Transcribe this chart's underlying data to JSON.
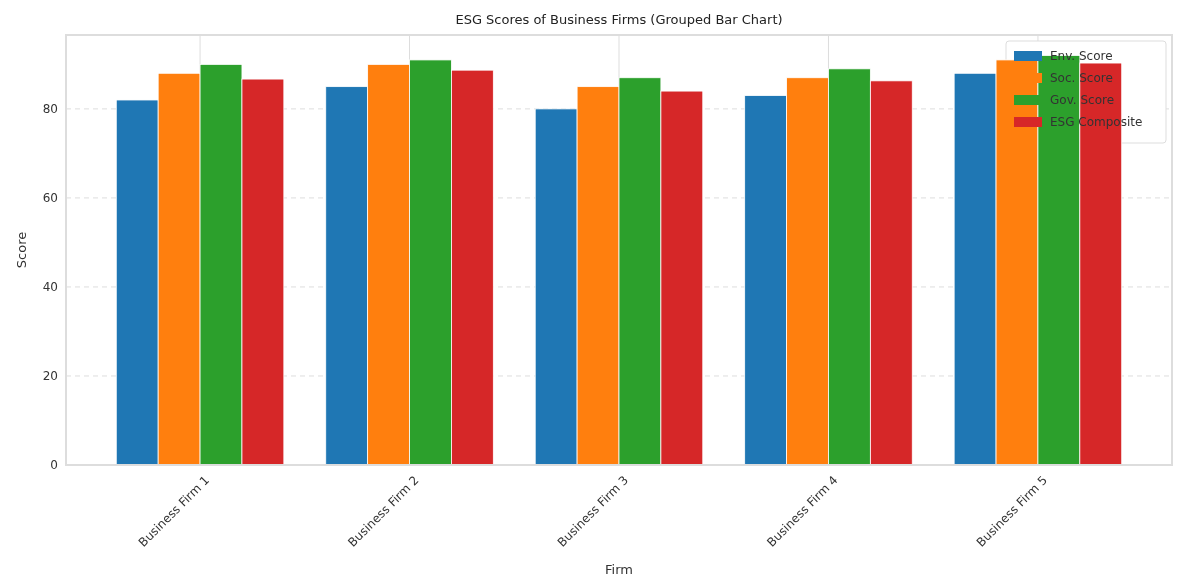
{
  "chart_data": {
    "type": "bar",
    "title": "ESG Scores of Business Firms (Grouped Bar Chart)",
    "xlabel": "Firm",
    "ylabel": "Score",
    "categories": [
      "Business Firm 1",
      "Business Firm 2",
      "Business Firm 3",
      "Business Firm 4",
      "Business Firm 5"
    ],
    "series": [
      {
        "name": "Env. Score",
        "color": "#1f77b4",
        "values": [
          82,
          85,
          80,
          83,
          88
        ]
      },
      {
        "name": "Soc. Score",
        "color": "#ff7f0e",
        "values": [
          88,
          90,
          85,
          87,
          91
        ]
      },
      {
        "name": "Gov. Score",
        "color": "#2ca02c",
        "values": [
          90,
          91,
          87,
          89,
          92
        ]
      },
      {
        "name": "ESG Composite",
        "color": "#d62728",
        "values": [
          86.7,
          88.7,
          84,
          86.3,
          90.3
        ]
      }
    ],
    "ylim": [
      0,
      96.6
    ],
    "yticks": [
      0,
      20,
      40,
      60,
      80
    ],
    "grid": true,
    "legend": "top right"
  }
}
